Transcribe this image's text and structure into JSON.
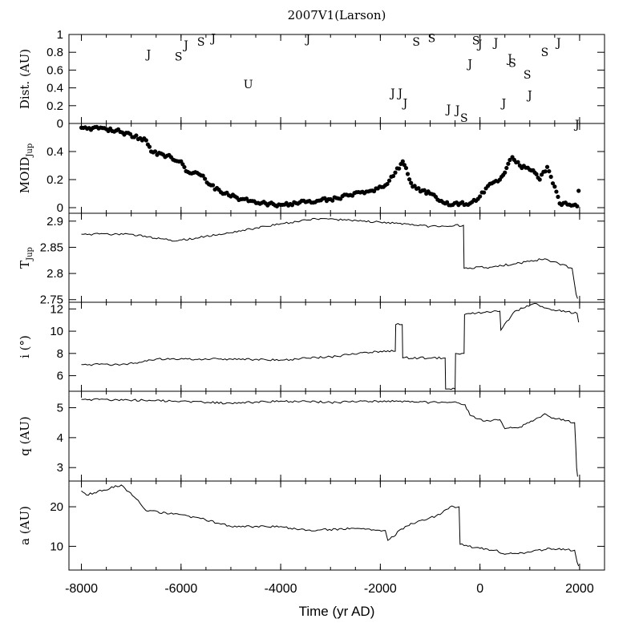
{
  "chart_data": {
    "type": "line",
    "title": "2007V1(Larson)",
    "xlabel": "Time (yr AD)",
    "xlim": [
      -8250,
      2500
    ],
    "xticks": [
      -8000,
      -6000,
      -4000,
      -2000,
      0,
      2000
    ],
    "xtick_labels": [
      "-8000",
      "-6000",
      "-4000",
      "-2000",
      "0",
      "2000"
    ],
    "panels": [
      {
        "id": "dist",
        "ylabel": "Dist. (AU)",
        "ylim": [
          0,
          1
        ],
        "yticks": [
          0,
          0.2,
          0.4,
          0.6,
          0.8,
          1
        ],
        "ytick_labels": [
          "0",
          "0.2",
          "0.4",
          "0.6",
          "0.8",
          "1"
        ],
        "type": "text-scatter",
        "points": [
          {
            "x": -6650,
            "y": 0.79,
            "label": "J"
          },
          {
            "x": -6050,
            "y": 0.76,
            "label": "S"
          },
          {
            "x": -5900,
            "y": 0.89,
            "label": "J"
          },
          {
            "x": -5600,
            "y": 0.93,
            "label": "S"
          },
          {
            "x": -5350,
            "y": 0.97,
            "label": "J"
          },
          {
            "x": -4650,
            "y": 0.45,
            "label": "U"
          },
          {
            "x": -3450,
            "y": 0.96,
            "label": "J"
          },
          {
            "x": -1750,
            "y": 0.35,
            "label": "J"
          },
          {
            "x": -1600,
            "y": 0.35,
            "label": "J"
          },
          {
            "x": -1500,
            "y": 0.24,
            "label": "J"
          },
          {
            "x": -1280,
            "y": 0.93,
            "label": "S"
          },
          {
            "x": -970,
            "y": 0.97,
            "label": "S"
          },
          {
            "x": -630,
            "y": 0.17,
            "label": "J"
          },
          {
            "x": -450,
            "y": 0.16,
            "label": "J"
          },
          {
            "x": -320,
            "y": 0.07,
            "label": "S"
          },
          {
            "x": -200,
            "y": 0.68,
            "label": "J"
          },
          {
            "x": -80,
            "y": 0.94,
            "label": "S"
          },
          {
            "x": 0,
            "y": 0.9,
            "label": "J"
          },
          {
            "x": 320,
            "y": 0.92,
            "label": "J"
          },
          {
            "x": 480,
            "y": 0.24,
            "label": "J"
          },
          {
            "x": 600,
            "y": 0.74,
            "label": "J"
          },
          {
            "x": 650,
            "y": 0.69,
            "label": "S"
          },
          {
            "x": 950,
            "y": 0.56,
            "label": "S"
          },
          {
            "x": 1000,
            "y": 0.33,
            "label": "J"
          },
          {
            "x": 1300,
            "y": 0.81,
            "label": "S"
          },
          {
            "x": 1580,
            "y": 0.92,
            "label": "J"
          },
          {
            "x": 1950,
            "y": 0.0,
            "label": "J"
          }
        ]
      },
      {
        "id": "moid",
        "ylabel": "MOID",
        "ylabel_sub": "Jup",
        "ylim": [
          -0.04,
          0.6
        ],
        "yticks": [
          0,
          0.2,
          0.4
        ],
        "ytick_labels": [
          "0",
          "0.2",
          "0.4"
        ],
        "type": "scatter",
        "segments": [
          [
            -8000,
            0.57
          ],
          [
            -7500,
            0.56
          ],
          [
            -7300,
            0.55
          ],
          [
            -6700,
            0.48
          ],
          [
            -6600,
            0.4
          ],
          [
            -6200,
            0.36
          ],
          [
            -6000,
            0.33
          ],
          [
            -5900,
            0.26
          ],
          [
            -5600,
            0.23
          ],
          [
            -5400,
            0.16
          ],
          [
            -5200,
            0.11
          ],
          [
            -4800,
            0.06
          ],
          [
            -4300,
            0.03
          ],
          [
            -4000,
            0.02
          ],
          [
            -3500,
            0.04
          ],
          [
            -3000,
            0.06
          ],
          [
            -2600,
            0.09
          ],
          [
            -2200,
            0.12
          ],
          [
            -1900,
            0.16
          ],
          [
            -1700,
            0.25
          ],
          [
            -1550,
            0.33
          ],
          [
            -1450,
            0.24
          ],
          [
            -1350,
            0.15
          ],
          [
            -1000,
            0.1
          ],
          [
            -700,
            0.03
          ],
          [
            -200,
            0.03
          ],
          [
            0,
            0.08
          ],
          [
            200,
            0.17
          ],
          [
            400,
            0.2
          ],
          [
            500,
            0.25
          ],
          [
            600,
            0.34
          ],
          [
            650,
            0.36
          ],
          [
            800,
            0.3
          ],
          [
            1000,
            0.27
          ],
          [
            1100,
            0.25
          ],
          [
            1200,
            0.2
          ],
          [
            1350,
            0.29
          ],
          [
            1500,
            0.15
          ],
          [
            1600,
            0.03
          ],
          [
            1950,
            0.01
          ],
          [
            1980,
            0.12
          ]
        ]
      },
      {
        "id": "tjup",
        "ylabel": "T",
        "ylabel_sub": "Jup",
        "ylim": [
          2.745,
          2.915
        ],
        "yticks": [
          2.75,
          2.8,
          2.85,
          2.9
        ],
        "ytick_labels": [
          "2.75",
          "2.8",
          "2.85",
          "2.9"
        ],
        "type": "line",
        "segments": [
          [
            -8000,
            2.875
          ],
          [
            -7000,
            2.875
          ],
          [
            -6100,
            2.862
          ],
          [
            -5000,
            2.878
          ],
          [
            -4000,
            2.895
          ],
          [
            -3200,
            2.905
          ],
          [
            -2000,
            2.898
          ],
          [
            -1000,
            2.89
          ],
          [
            -330,
            2.892
          ],
          [
            -320,
            2.81
          ],
          [
            200,
            2.812
          ],
          [
            800,
            2.82
          ],
          [
            1300,
            2.828
          ],
          [
            1850,
            2.81
          ],
          [
            1930,
            2.76
          ],
          [
            1960,
            2.752
          ]
        ]
      },
      {
        "id": "incl",
        "ylabel": "i (°)",
        "ylim": [
          4.6,
          12.6
        ],
        "yticks": [
          6,
          8,
          10,
          12
        ],
        "ytick_labels": [
          "6",
          "8",
          "10",
          "12"
        ],
        "type": "line",
        "segments": [
          [
            -8000,
            7.0
          ],
          [
            -7200,
            7.0
          ],
          [
            -6800,
            7.2
          ],
          [
            -6500,
            7.5
          ],
          [
            -5000,
            7.5
          ],
          [
            -4000,
            7.4
          ],
          [
            -3000,
            7.7
          ],
          [
            -2000,
            8.2
          ],
          [
            -1700,
            8.2
          ],
          [
            -1690,
            10.6
          ],
          [
            -1560,
            10.6
          ],
          [
            -1550,
            7.6
          ],
          [
            -700,
            7.6
          ],
          [
            -690,
            4.8
          ],
          [
            -500,
            4.8
          ],
          [
            -490,
            8.0
          ],
          [
            -320,
            8.0
          ],
          [
            -310,
            11.5
          ],
          [
            100,
            11.7
          ],
          [
            400,
            11.8
          ],
          [
            420,
            10.1
          ],
          [
            700,
            11.8
          ],
          [
            1100,
            12.5
          ],
          [
            1400,
            12.0
          ],
          [
            1950,
            11.6
          ],
          [
            1980,
            10.8
          ]
        ]
      },
      {
        "id": "q",
        "ylabel": "q (AU)",
        "ylim": [
          2.55,
          5.55
        ],
        "yticks": [
          3,
          4,
          5
        ],
        "ytick_labels": [
          "3",
          "4",
          "5"
        ],
        "type": "line",
        "segments": [
          [
            -8000,
            5.28
          ],
          [
            -6000,
            5.22
          ],
          [
            -5000,
            5.15
          ],
          [
            -4000,
            5.22
          ],
          [
            -3000,
            5.18
          ],
          [
            -2000,
            5.22
          ],
          [
            -1000,
            5.18
          ],
          [
            -500,
            5.2
          ],
          [
            -300,
            5.1
          ],
          [
            -200,
            4.75
          ],
          [
            100,
            4.55
          ],
          [
            400,
            4.6
          ],
          [
            500,
            4.3
          ],
          [
            800,
            4.35
          ],
          [
            1100,
            4.6
          ],
          [
            1300,
            4.8
          ],
          [
            1400,
            4.7
          ],
          [
            1900,
            4.5
          ],
          [
            1920,
            3.8
          ],
          [
            1940,
            3.0
          ],
          [
            1960,
            2.7
          ]
        ]
      },
      {
        "id": "a",
        "ylabel": "a (AU)",
        "ylim": [
          4.0,
          26.5
        ],
        "yticks": [
          10,
          20
        ],
        "ytick_labels": [
          "10",
          "20"
        ],
        "type": "line",
        "segments": [
          [
            -8000,
            24.0
          ],
          [
            -7900,
            23.0
          ],
          [
            -7200,
            25.5
          ],
          [
            -6900,
            22.0
          ],
          [
            -6700,
            19.0
          ],
          [
            -6000,
            18.0
          ],
          [
            -5600,
            17.0
          ],
          [
            -5000,
            15.0
          ],
          [
            -4000,
            15.0
          ],
          [
            -3500,
            14.0
          ],
          [
            -2500,
            14.5
          ],
          [
            -1900,
            14.0
          ],
          [
            -1850,
            11.5
          ],
          [
            -1500,
            15.0
          ],
          [
            -1200,
            16.5
          ],
          [
            -800,
            18.0
          ],
          [
            -600,
            20.0
          ],
          [
            -420,
            20.0
          ],
          [
            -400,
            10.5
          ],
          [
            0,
            9.5
          ],
          [
            300,
            9.0
          ],
          [
            500,
            8.0
          ],
          [
            1000,
            8.5
          ],
          [
            1400,
            9.5
          ],
          [
            1900,
            9.0
          ],
          [
            1950,
            6.0
          ],
          [
            1980,
            5.0
          ]
        ]
      }
    ]
  }
}
